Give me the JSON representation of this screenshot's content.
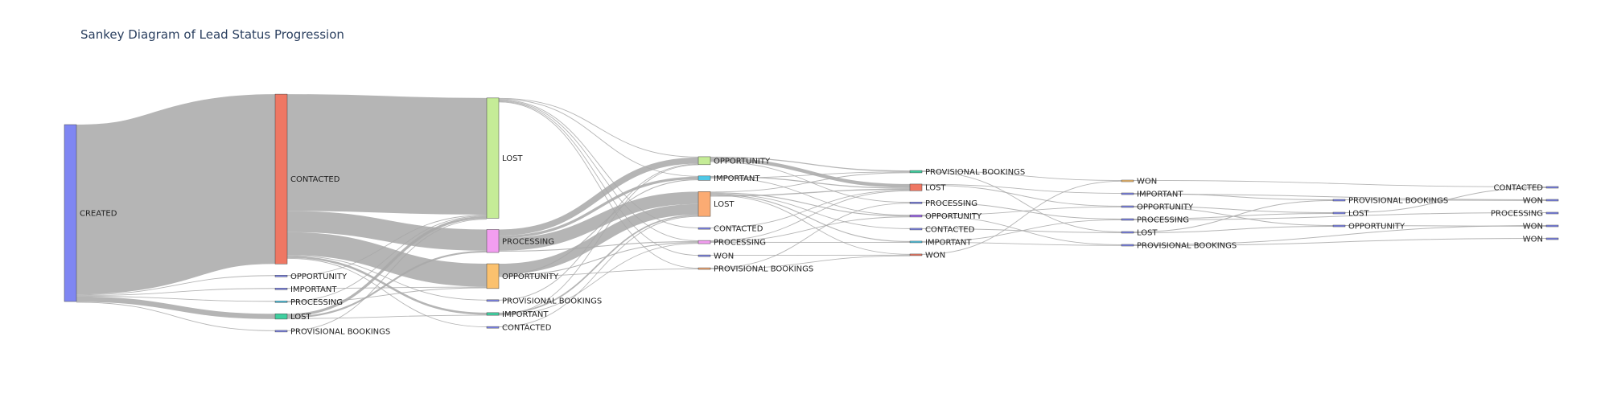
{
  "title": "Sankey Diagram of Lead Status Progression",
  "chart_data": {
    "type": "sankey",
    "title": "Sankey Diagram of Lead Status Progression",
    "link_color": "#a8a8a8",
    "nodes": [
      {
        "id": "c0_created",
        "label": "CREATED",
        "stage": 0,
        "value": 100,
        "color": "#7f86f2"
      },
      {
        "id": "c1_contacted",
        "label": "CONTACTED",
        "stage": 1,
        "value": 96,
        "color": "#ef7763"
      },
      {
        "id": "c1_opportunity",
        "label": "OPPORTUNITY",
        "stage": 1,
        "value": 0.2,
        "color": "#7f86f2"
      },
      {
        "id": "c1_important",
        "label": "IMPORTANT",
        "stage": 1,
        "value": 0.2,
        "color": "#7f86f2"
      },
      {
        "id": "c1_processing",
        "label": "PROCESSING",
        "stage": 1,
        "value": 0.4,
        "color": "#4fc8e6"
      },
      {
        "id": "c1_lost",
        "label": "LOST",
        "stage": 1,
        "value": 3,
        "color": "#3fcf9f"
      },
      {
        "id": "c1_provisional",
        "label": "PROVISIONAL BOOKINGS",
        "stage": 1,
        "value": 0.2,
        "color": "#7f86f2"
      },
      {
        "id": "c2_lost",
        "label": "LOST",
        "stage": 2,
        "value": 68,
        "color": "#c5ec97"
      },
      {
        "id": "c2_processing",
        "label": "PROCESSING",
        "stage": 2,
        "value": 13,
        "color": "#f29ef0"
      },
      {
        "id": "c2_opportunity",
        "label": "OPPORTUNITY",
        "stage": 2,
        "value": 14,
        "color": "#fbc16e"
      },
      {
        "id": "c2_provisional",
        "label": "PROVISIONAL BOOKINGS",
        "stage": 2,
        "value": 0.3,
        "color": "#7f86f2"
      },
      {
        "id": "c2_important",
        "label": "IMPORTANT",
        "stage": 2,
        "value": 1.5,
        "color": "#3fcf9f"
      },
      {
        "id": "c2_contacted",
        "label": "CONTACTED",
        "stage": 2,
        "value": 0.3,
        "color": "#7f86f2"
      },
      {
        "id": "c3_opportunity",
        "label": "OPPORTUNITY",
        "stage": 3,
        "value": 4.5,
        "color": "#c5ec97"
      },
      {
        "id": "c3_important",
        "label": "IMPORTANT",
        "stage": 3,
        "value": 2.5,
        "color": "#4fc8e6"
      },
      {
        "id": "c3_lost",
        "label": "LOST",
        "stage": 3,
        "value": 14,
        "color": "#fbab73"
      },
      {
        "id": "c3_contacted",
        "label": "CONTACTED",
        "stage": 3,
        "value": 0.3,
        "color": "#7f86f2"
      },
      {
        "id": "c3_processing",
        "label": "PROCESSING",
        "stage": 3,
        "value": 1.8,
        "color": "#f29ef0"
      },
      {
        "id": "c3_won",
        "label": "WON",
        "stage": 3,
        "value": 0.2,
        "color": "#7f86f2"
      },
      {
        "id": "c3_provisional",
        "label": "PROVISIONAL BOOKINGS",
        "stage": 3,
        "value": 0.6,
        "color": "#fbab73"
      },
      {
        "id": "c4_provisional",
        "label": "PROVISIONAL BOOKINGS",
        "stage": 4,
        "value": 1.3,
        "color": "#3fcf9f"
      },
      {
        "id": "c4_lost",
        "label": "LOST",
        "stage": 4,
        "value": 3.8,
        "color": "#ef7763"
      },
      {
        "id": "c4_processing",
        "label": "PROCESSING",
        "stage": 4,
        "value": 0.4,
        "color": "#7f86f2"
      },
      {
        "id": "c4_opportunity",
        "label": "OPPORTUNITY",
        "stage": 4,
        "value": 1.2,
        "color": "#a56ff2"
      },
      {
        "id": "c4_contacted",
        "label": "CONTACTED",
        "stage": 4,
        "value": 0.4,
        "color": "#7f86f2"
      },
      {
        "id": "c4_important",
        "label": "IMPORTANT",
        "stage": 4,
        "value": 0.8,
        "color": "#4fc8e6"
      },
      {
        "id": "c4_won",
        "label": "WON",
        "stage": 4,
        "value": 0.6,
        "color": "#ef7763"
      },
      {
        "id": "c5_won",
        "label": "WON",
        "stage": 5,
        "value": 0.6,
        "color": "#fbc16e"
      },
      {
        "id": "c5_important",
        "label": "IMPORTANT",
        "stage": 5,
        "value": 0.4,
        "color": "#7f86f2"
      },
      {
        "id": "c5_opportunity",
        "label": "OPPORTUNITY",
        "stage": 5,
        "value": 0.4,
        "color": "#7f86f2"
      },
      {
        "id": "c5_processing",
        "label": "PROCESSING",
        "stage": 5,
        "value": 0.4,
        "color": "#7f86f2"
      },
      {
        "id": "c5_lost",
        "label": "LOST",
        "stage": 5,
        "value": 0.4,
        "color": "#7f86f2"
      },
      {
        "id": "c5_provisional",
        "label": "PROVISIONAL BOOKINGS",
        "stage": 5,
        "value": 0.4,
        "color": "#7f86f2"
      },
      {
        "id": "c6_provisional",
        "label": "PROVISIONAL BOOKINGS",
        "stage": 6,
        "value": 0.4,
        "color": "#7f86f2"
      },
      {
        "id": "c6_lost",
        "label": "LOST",
        "stage": 6,
        "value": 0.4,
        "color": "#7f86f2"
      },
      {
        "id": "c6_opportunity",
        "label": "OPPORTUNITY",
        "stage": 6,
        "value": 0.4,
        "color": "#7f86f2"
      },
      {
        "id": "c7_contacted",
        "label": "CONTACTED",
        "stage": 7,
        "value": 0.2,
        "color": "#7f86f2"
      },
      {
        "id": "c7_won_a",
        "label": "WON",
        "stage": 7,
        "value": 0.2,
        "color": "#7f86f2"
      },
      {
        "id": "c7_processing",
        "label": "PROCESSING",
        "stage": 7,
        "value": 0.2,
        "color": "#7f86f2"
      },
      {
        "id": "c7_won_b",
        "label": "WON",
        "stage": 7,
        "value": 0.2,
        "color": "#7f86f2"
      },
      {
        "id": "c7_won_c",
        "label": "WON",
        "stage": 7,
        "value": 0.2,
        "color": "#7f86f2"
      }
    ],
    "links": [
      {
        "source": "c0_created",
        "target": "c1_contacted",
        "value": 96
      },
      {
        "source": "c0_created",
        "target": "c1_opportunity",
        "value": 0.2
      },
      {
        "source": "c0_created",
        "target": "c1_important",
        "value": 0.2
      },
      {
        "source": "c0_created",
        "target": "c1_processing",
        "value": 0.4
      },
      {
        "source": "c0_created",
        "target": "c1_lost",
        "value": 3
      },
      {
        "source": "c0_created",
        "target": "c1_provisional",
        "value": 0.2
      },
      {
        "source": "c1_contacted",
        "target": "c2_lost",
        "value": 66
      },
      {
        "source": "c1_contacted",
        "target": "c2_processing",
        "value": 12
      },
      {
        "source": "c1_contacted",
        "target": "c2_opportunity",
        "value": 13
      },
      {
        "source": "c1_contacted",
        "target": "c2_provisional",
        "value": 0.3
      },
      {
        "source": "c1_contacted",
        "target": "c2_important",
        "value": 1.2
      },
      {
        "source": "c1_contacted",
        "target": "c2_contacted",
        "value": 0.3
      },
      {
        "source": "c1_opportunity",
        "target": "c2_lost",
        "value": 0.2
      },
      {
        "source": "c1_important",
        "target": "c2_opportunity",
        "value": 0.2
      },
      {
        "source": "c1_processing",
        "target": "c2_lost",
        "value": 0.2
      },
      {
        "source": "c1_processing",
        "target": "c2_opportunity",
        "value": 0.2
      },
      {
        "source": "c1_lost",
        "target": "c2_lost",
        "value": 1.5
      },
      {
        "source": "c1_lost",
        "target": "c2_processing",
        "value": 1
      },
      {
        "source": "c1_lost",
        "target": "c2_important",
        "value": 0.3
      },
      {
        "source": "c1_provisional",
        "target": "c2_lost",
        "value": 0.2
      },
      {
        "source": "c2_lost",
        "target": "c3_opportunity",
        "value": 0.3
      },
      {
        "source": "c2_lost",
        "target": "c3_important",
        "value": 0.3
      },
      {
        "source": "c2_lost",
        "target": "c3_contacted",
        "value": 0.2
      },
      {
        "source": "c2_lost",
        "target": "c3_processing",
        "value": 0.3
      },
      {
        "source": "c2_lost",
        "target": "c3_won",
        "value": 0.2
      },
      {
        "source": "c2_lost",
        "target": "c3_provisional",
        "value": 0.2
      },
      {
        "source": "c2_processing",
        "target": "c3_opportunity",
        "value": 3.5
      },
      {
        "source": "c2_processing",
        "target": "c3_important",
        "value": 1.5
      },
      {
        "source": "c2_processing",
        "target": "c3_lost",
        "value": 7
      },
      {
        "source": "c2_processing",
        "target": "c3_processing",
        "value": 0.5
      },
      {
        "source": "c2_opportunity",
        "target": "c3_lost",
        "value": 6
      },
      {
        "source": "c2_opportunity",
        "target": "c3_important",
        "value": 0.5
      },
      {
        "source": "c2_opportunity",
        "target": "c3_processing",
        "value": 0.5
      },
      {
        "source": "c2_opportunity",
        "target": "c3_provisional",
        "value": 0.2
      },
      {
        "source": "c2_provisional",
        "target": "c3_opportunity",
        "value": 0.2
      },
      {
        "source": "c2_important",
        "target": "c3_lost",
        "value": 0.8
      },
      {
        "source": "c2_important",
        "target": "c3_opportunity",
        "value": 0.3
      },
      {
        "source": "c2_important",
        "target": "c3_processing",
        "value": 0.3
      },
      {
        "source": "c2_contacted",
        "target": "c3_lost",
        "value": 0.2
      },
      {
        "source": "c3_opportunity",
        "target": "c4_provisional",
        "value": 0.6
      },
      {
        "source": "c3_opportunity",
        "target": "c4_lost",
        "value": 2
      },
      {
        "source": "c3_opportunity",
        "target": "c4_processing",
        "value": 0.2
      },
      {
        "source": "c3_important",
        "target": "c4_lost",
        "value": 0.6
      },
      {
        "source": "c3_important",
        "target": "c4_opportunity",
        "value": 0.4
      },
      {
        "source": "c3_important",
        "target": "c4_provisional",
        "value": 0.3
      },
      {
        "source": "c3_lost",
        "target": "c4_provisional",
        "value": 0.3
      },
      {
        "source": "c3_lost",
        "target": "c4_opportunity",
        "value": 0.5
      },
      {
        "source": "c3_lost",
        "target": "c4_contacted",
        "value": 0.3
      },
      {
        "source": "c3_lost",
        "target": "c4_important",
        "value": 0.5
      },
      {
        "source": "c3_lost",
        "target": "c4_won",
        "value": 0.3
      },
      {
        "source": "c3_lost",
        "target": "c4_lost",
        "value": 0.6
      },
      {
        "source": "c3_contacted",
        "target": "c4_lost",
        "value": 0.2
      },
      {
        "source": "c3_processing",
        "target": "c4_lost",
        "value": 0.4
      },
      {
        "source": "c3_processing",
        "target": "c4_opportunity",
        "value": 0.3
      },
      {
        "source": "c3_processing",
        "target": "c4_important",
        "value": 0.3
      },
      {
        "source": "c3_won",
        "target": "c4_won",
        "value": 0.2
      },
      {
        "source": "c3_provisional",
        "target": "c4_processing",
        "value": 0.2
      },
      {
        "source": "c3_provisional",
        "target": "c4_won",
        "value": 0.1
      },
      {
        "source": "c4_provisional",
        "target": "c5_won",
        "value": 0.4
      },
      {
        "source": "c4_provisional",
        "target": "c5_lost",
        "value": 0.2
      },
      {
        "source": "c4_lost",
        "target": "c5_important",
        "value": 0.4
      },
      {
        "source": "c4_lost",
        "target": "c5_opportunity",
        "value": 0.2
      },
      {
        "source": "c4_processing",
        "target": "c5_processing",
        "value": 0.2
      },
      {
        "source": "c4_opportunity",
        "target": "c5_opportunity",
        "value": 0.2
      },
      {
        "source": "c4_opportunity",
        "target": "c5_provisional",
        "value": 0.2
      },
      {
        "source": "c4_contacted",
        "target": "c5_lost",
        "value": 0.2
      },
      {
        "source": "c4_important",
        "target": "c5_processing",
        "value": 0.2
      },
      {
        "source": "c4_important",
        "target": "c5_provisional",
        "value": 0.2
      },
      {
        "source": "c4_won",
        "target": "c5_won",
        "value": 0.2
      },
      {
        "source": "c5_won",
        "target": "c7_contacted",
        "value": 0.2
      },
      {
        "source": "c5_important",
        "target": "c6_provisional",
        "value": 0.2
      },
      {
        "source": "c5_important",
        "target": "c7_won_a",
        "value": 0.2
      },
      {
        "source": "c5_opportunity",
        "target": "c6_lost",
        "value": 0.2
      },
      {
        "source": "c5_opportunity",
        "target": "c6_opportunity",
        "value": 0.2
      },
      {
        "source": "c5_processing",
        "target": "c6_lost",
        "value": 0.2
      },
      {
        "source": "c5_processing",
        "target": "c7_processing",
        "value": 0.2
      },
      {
        "source": "c5_lost",
        "target": "c6_provisional",
        "value": 0.2
      },
      {
        "source": "c5_lost",
        "target": "c6_opportunity",
        "value": 0.2
      },
      {
        "source": "c5_provisional",
        "target": "c7_won_b",
        "value": 0.2
      },
      {
        "source": "c5_provisional",
        "target": "c7_won_c",
        "value": 0.2
      },
      {
        "source": "c6_provisional",
        "target": "c7_won_a",
        "value": 0.2
      },
      {
        "source": "c6_lost",
        "target": "c7_contacted",
        "value": 0.2
      },
      {
        "source": "c6_opportunity",
        "target": "c7_won_b",
        "value": 0.2
      }
    ]
  }
}
